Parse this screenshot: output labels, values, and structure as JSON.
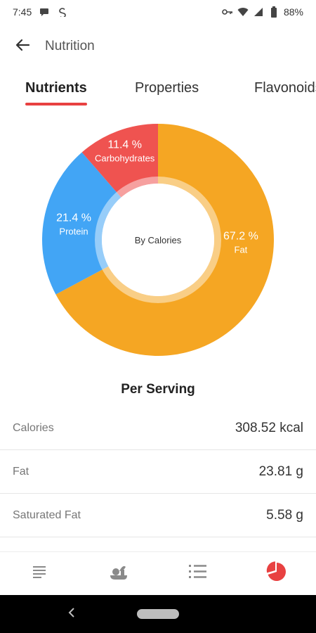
{
  "status_bar": {
    "time": "7:45",
    "battery_text": "88%"
  },
  "app_bar": {
    "title": "Nutrition",
    "back_icon": "arrow-left-icon"
  },
  "tabs": [
    {
      "label": "Nutrients",
      "active": true
    },
    {
      "label": "Properties",
      "active": false
    },
    {
      "label": "Flavonoids",
      "active": false
    }
  ],
  "chart_data": {
    "type": "pie",
    "center_label": "By Calories",
    "slices": [
      {
        "label": "Fat",
        "percent": 67.2,
        "percent_text": "67.2 %",
        "color": "#f5a623"
      },
      {
        "label": "Protein",
        "percent": 21.4,
        "percent_text": "21.4 %",
        "color": "#42a5f5"
      },
      {
        "label": "Carbohydrates",
        "percent": 11.4,
        "percent_text": "11.4 %",
        "color": "#ef5350"
      }
    ]
  },
  "per_serving": {
    "title": "Per Serving",
    "rows": [
      {
        "name": "Calories",
        "value": "308.52 kcal"
      },
      {
        "name": "Fat",
        "value": "23.81 g"
      },
      {
        "name": "Saturated Fat",
        "value": "5.58 g"
      }
    ]
  },
  "bottom_nav": [
    {
      "icon": "list-icon",
      "active": false
    },
    {
      "icon": "ingredients-icon",
      "active": false
    },
    {
      "icon": "steps-list-icon",
      "active": false
    },
    {
      "icon": "pie-chart-icon",
      "active": true
    }
  ],
  "colors": {
    "accent": "#e84141",
    "nav_inactive": "#8a8a8a"
  }
}
